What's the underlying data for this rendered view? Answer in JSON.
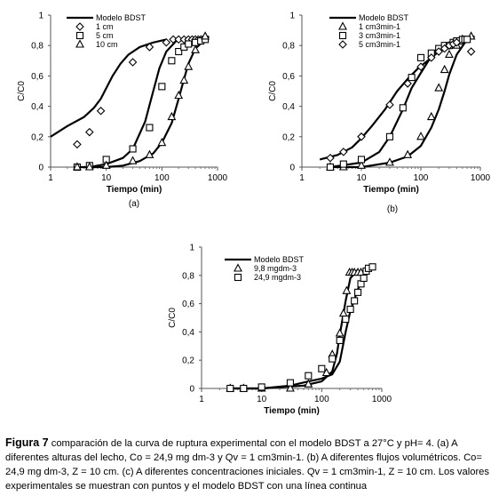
{
  "chart_data": [
    {
      "id": "a",
      "type": "scatter",
      "panel_label": "(a)",
      "xlabel": "Tiempo (min)",
      "ylabel": "C/C0",
      "xscale": "log",
      "xlim": [
        1,
        1000
      ],
      "ylim": [
        0,
        1
      ],
      "xticks": [
        "1",
        "10",
        "100",
        "1000"
      ],
      "yticks": [
        "0",
        "0,2",
        "0,4",
        "0,6",
        "0,8",
        "1"
      ],
      "legend_position": "top-left",
      "model": {
        "name": "Modelo BDST",
        "curves": [
          [
            [
              1,
              0.2
            ],
            [
              2,
              0.27
            ],
            [
              4,
              0.33
            ],
            [
              6,
              0.39
            ],
            [
              8,
              0.45
            ],
            [
              10,
              0.52
            ],
            [
              13,
              0.6
            ],
            [
              18,
              0.68
            ],
            [
              25,
              0.74
            ],
            [
              40,
              0.79
            ],
            [
              70,
              0.82
            ],
            [
              120,
              0.84
            ]
          ],
          [
            [
              5,
              0.0
            ],
            [
              10,
              0.02
            ],
            [
              20,
              0.06
            ],
            [
              30,
              0.12
            ],
            [
              50,
              0.3
            ],
            [
              70,
              0.5
            ],
            [
              90,
              0.65
            ],
            [
              120,
              0.76
            ],
            [
              180,
              0.83
            ],
            [
              300,
              0.84
            ],
            [
              500,
              0.85
            ],
            [
              700,
              0.85
            ]
          ],
          [
            [
              3,
              0.0
            ],
            [
              10,
              0.0
            ],
            [
              20,
              0.01
            ],
            [
              40,
              0.04
            ],
            [
              70,
              0.09
            ],
            [
              100,
              0.16
            ],
            [
              150,
              0.29
            ],
            [
              200,
              0.45
            ],
            [
              250,
              0.58
            ],
            [
              300,
              0.68
            ],
            [
              400,
              0.78
            ],
            [
              600,
              0.84
            ],
            [
              700,
              0.86
            ]
          ]
        ]
      },
      "series": [
        {
          "name": "1 cm",
          "marker": "diamond",
          "x": [
            3,
            5,
            8,
            30,
            60,
            120,
            160,
            200,
            250,
            300,
            350,
            400,
            450,
            500
          ],
          "y": [
            0.15,
            0.23,
            0.37,
            0.69,
            0.79,
            0.82,
            0.84,
            0.84,
            0.84,
            0.84,
            0.84,
            0.84,
            0.84,
            0.84
          ]
        },
        {
          "name": "5 cm",
          "marker": "square",
          "x": [
            3,
            5,
            10,
            30,
            60,
            100,
            150,
            200,
            250,
            300,
            400,
            500,
            600
          ],
          "y": [
            0.0,
            0.01,
            0.05,
            0.12,
            0.26,
            0.53,
            0.7,
            0.76,
            0.79,
            0.81,
            0.82,
            0.83,
            0.84
          ]
        },
        {
          "name": "10 cm",
          "marker": "triangle",
          "x": [
            3,
            5,
            10,
            30,
            60,
            100,
            150,
            200,
            250,
            300,
            400,
            600
          ],
          "y": [
            0.0,
            0.0,
            0.01,
            0.04,
            0.08,
            0.16,
            0.33,
            0.47,
            0.57,
            0.66,
            0.77,
            0.86
          ]
        }
      ]
    },
    {
      "id": "b",
      "type": "scatter",
      "panel_label": "(b)",
      "xlabel": "Tiempo (min)",
      "ylabel": "C/C0",
      "xscale": "log",
      "xlim": [
        1,
        1000
      ],
      "ylim": [
        0,
        1
      ],
      "xticks": [
        "1",
        "10",
        "100",
        "1000"
      ],
      "yticks": [
        "0",
        "0,2",
        "0,4",
        "0,6",
        "0,8",
        "1"
      ],
      "legend_position": "top-left",
      "model": {
        "name": "Modelo BDST",
        "curves": [
          [
            [
              2,
              0.05
            ],
            [
              4,
              0.08
            ],
            [
              7,
              0.13
            ],
            [
              10,
              0.19
            ],
            [
              15,
              0.27
            ],
            [
              25,
              0.38
            ],
            [
              40,
              0.5
            ],
            [
              60,
              0.58
            ],
            [
              90,
              0.65
            ],
            [
              130,
              0.7
            ],
            [
              200,
              0.76
            ],
            [
              300,
              0.82
            ]
          ],
          [
            [
              3,
              0.0
            ],
            [
              10,
              0.03
            ],
            [
              20,
              0.1
            ],
            [
              30,
              0.2
            ],
            [
              50,
              0.38
            ],
            [
              70,
              0.52
            ],
            [
              100,
              0.62
            ],
            [
              150,
              0.73
            ],
            [
              200,
              0.79
            ],
            [
              300,
              0.82
            ],
            [
              500,
              0.84
            ]
          ],
          [
            [
              3,
              0.0
            ],
            [
              10,
              0.0
            ],
            [
              30,
              0.03
            ],
            [
              60,
              0.07
            ],
            [
              100,
              0.14
            ],
            [
              150,
              0.26
            ],
            [
              200,
              0.38
            ],
            [
              250,
              0.5
            ],
            [
              300,
              0.61
            ],
            [
              400,
              0.74
            ],
            [
              600,
              0.84
            ],
            [
              800,
              0.86
            ]
          ]
        ]
      },
      "series": [
        {
          "name": "1 cm3min-1",
          "marker": "triangle",
          "x": [
            3,
            5,
            10,
            30,
            60,
            100,
            150,
            200,
            250,
            300,
            400,
            500,
            700
          ],
          "y": [
            0.0,
            0.0,
            0.01,
            0.03,
            0.08,
            0.2,
            0.33,
            0.52,
            0.64,
            0.74,
            0.8,
            0.84,
            0.86
          ]
        },
        {
          "name": "3 cm3min-1",
          "marker": "square",
          "x": [
            3,
            5,
            10,
            30,
            50,
            70,
            100,
            150,
            200,
            250,
            300,
            350,
            400,
            450,
            500,
            550,
            600
          ],
          "y": [
            0.0,
            0.02,
            0.05,
            0.2,
            0.39,
            0.59,
            0.72,
            0.75,
            0.78,
            0.8,
            0.8,
            0.82,
            0.83,
            0.83,
            0.84,
            0.84,
            0.84
          ]
        },
        {
          "name": "5 cm3min-1",
          "marker": "diamond",
          "x": [
            3,
            5,
            10,
            30,
            60,
            100,
            150,
            200,
            250,
            300,
            350,
            400,
            700
          ],
          "y": [
            0.06,
            0.1,
            0.2,
            0.41,
            0.55,
            0.66,
            0.72,
            0.76,
            0.78,
            0.8,
            0.81,
            0.82,
            0.76
          ]
        }
      ]
    },
    {
      "id": "c",
      "type": "scatter",
      "panel_label": "(c)",
      "xlabel": "Tiempo (min)",
      "ylabel": "C/C0",
      "xscale": "log",
      "xlim": [
        1,
        1000
      ],
      "ylim": [
        0,
        1
      ],
      "xticks": [
        "1",
        "10",
        "100",
        "1000"
      ],
      "yticks": [
        "0",
        "0,2",
        "0,4",
        "0,6",
        "0,8",
        "1"
      ],
      "legend_position": "top-left",
      "model": {
        "name": "Modelo BDST",
        "curves": [
          [
            [
              3,
              0.0
            ],
            [
              10,
              0.0
            ],
            [
              50,
              0.02
            ],
            [
              100,
              0.05
            ],
            [
              150,
              0.12
            ],
            [
              180,
              0.25
            ],
            [
              200,
              0.38
            ],
            [
              250,
              0.62
            ],
            [
              300,
              0.78
            ],
            [
              400,
              0.84
            ]
          ],
          [
            [
              3,
              0.0
            ],
            [
              10,
              0.0
            ],
            [
              30,
              0.02
            ],
            [
              60,
              0.05
            ],
            [
              100,
              0.07
            ],
            [
              150,
              0.1
            ],
            [
              200,
              0.19
            ],
            [
              250,
              0.4
            ],
            [
              300,
              0.55
            ],
            [
              400,
              0.7
            ],
            [
              500,
              0.8
            ],
            [
              700,
              0.86
            ]
          ]
        ]
      },
      "series": [
        {
          "name": "9,8 mgdm-3",
          "marker": "triangle",
          "x": [
            3,
            5,
            10,
            30,
            60,
            120,
            150,
            200,
            230,
            260,
            290,
            320,
            350,
            400,
            450
          ],
          "y": [
            0.0,
            0.0,
            0.0,
            0.0,
            0.03,
            0.11,
            0.24,
            0.39,
            0.53,
            0.69,
            0.82,
            0.82,
            0.82,
            0.82,
            0.82
          ]
        },
        {
          "name": "24,9 mgdm-3",
          "marker": "square",
          "x": [
            3,
            5,
            10,
            30,
            60,
            100,
            150,
            200,
            250,
            300,
            350,
            400,
            450,
            500,
            550,
            600,
            700
          ],
          "y": [
            0.0,
            0.0,
            0.01,
            0.04,
            0.09,
            0.14,
            0.21,
            0.34,
            0.49,
            0.56,
            0.62,
            0.68,
            0.74,
            0.78,
            0.83,
            0.85,
            0.86
          ]
        }
      ]
    }
  ],
  "caption": {
    "figure_label": "Figura 7",
    "text": "comparación de la curva de ruptura experimental con el modelo BDST a 27°C y pH= 4. (a) A diferentes alturas del lecho, Co = 24,9 mg dm-3 y Qv = 1 cm3min-1. (b) A diferentes flujos volumétricos. Co= 24,9 mg dm-3, Z = 10 cm. (c) A diferentes concentraciones iniciales. Qv = 1 cm3min-1, Z = 10 cm. Los valores experimentales se muestran con puntos y el modelo BDST con una línea continua"
  }
}
